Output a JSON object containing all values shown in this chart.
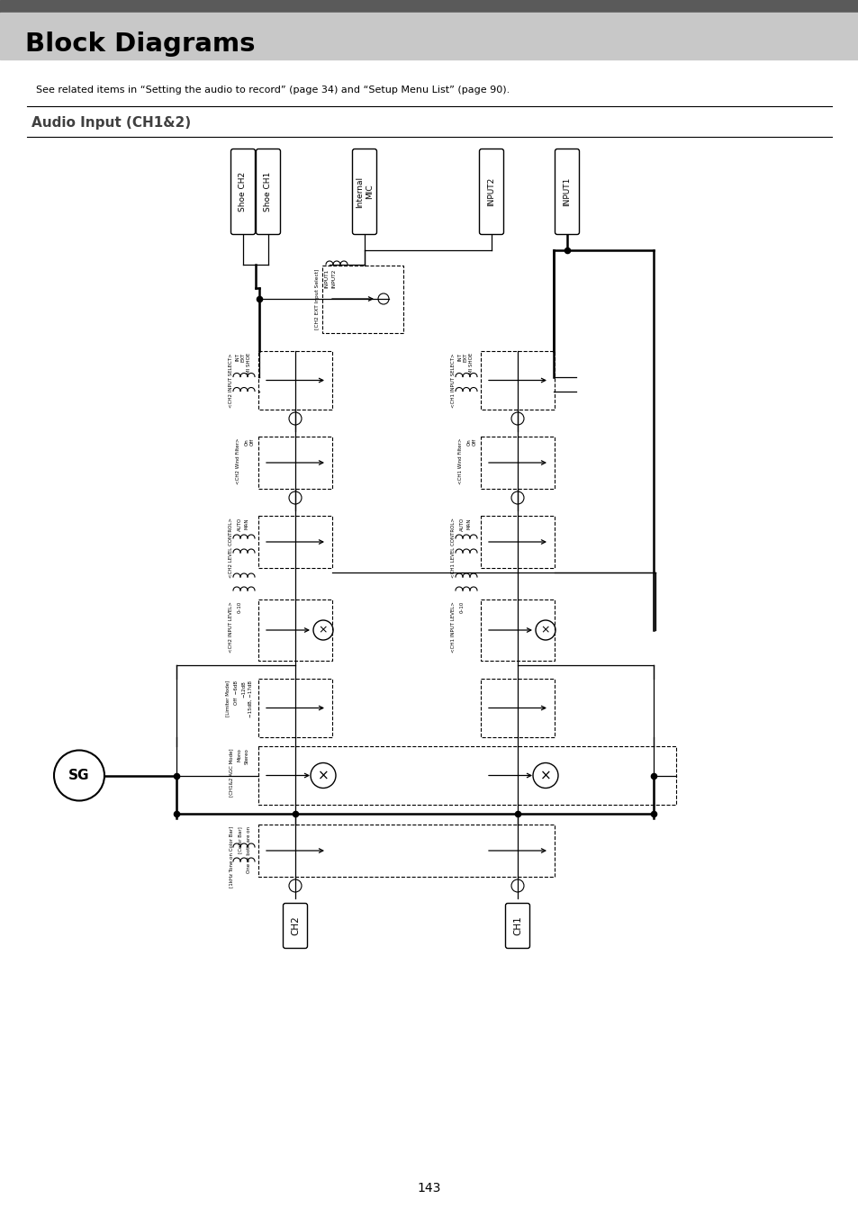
{
  "title": "Block Diagrams",
  "subtitle": "Audio Input (CH1&2)",
  "see_related": "See related items in “Setting the audio to record” (page 34) and “Setup Menu List” (page 90).",
  "page_number": "143",
  "bg_color": "#ffffff",
  "header_bg": "#c8c8c8",
  "header_dark": "#5a5a5a",
  "lw": 0.9,
  "lw_thick": 1.8
}
